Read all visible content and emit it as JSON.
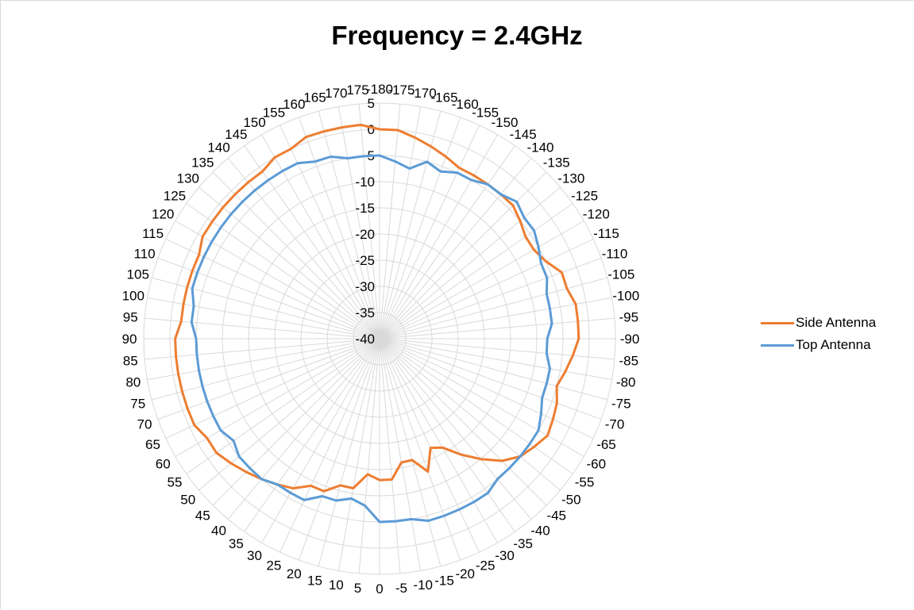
{
  "chart_data": {
    "type": "radar",
    "title": "Frequency = 2.4GHz",
    "angle_labels": [
      "0",
      "-5",
      "-10",
      "-15",
      "-20",
      "-25",
      "-30",
      "-35",
      "-40",
      "-45",
      "-50",
      "-55",
      "-60",
      "-65",
      "-70",
      "-75",
      "-80",
      "-85",
      "-90",
      "-95",
      "-100",
      "-105",
      "-110",
      "-115",
      "-120",
      "-125",
      "-130",
      "-135",
      "-140",
      "-145",
      "-150",
      "-155",
      "-160",
      "-165",
      "-170",
      "-175",
      "-180",
      "175",
      "170",
      "165",
      "160",
      "155",
      "150",
      "145",
      "140",
      "135",
      "130",
      "125",
      "120",
      "115",
      "110",
      "105",
      "100",
      "95",
      "90",
      "85",
      "80",
      "75",
      "70",
      "65",
      "60",
      "55",
      "50",
      "45",
      "40",
      "35",
      "30",
      "25",
      "20",
      "15",
      "10",
      "5"
    ],
    "radial_ticks": [
      -40,
      -35,
      -30,
      -25,
      -20,
      -15,
      -10,
      -5,
      0,
      5
    ],
    "rlim": [
      -40,
      5
    ],
    "grid": true,
    "legend_position": "right",
    "series": [
      {
        "name": "Side Antenna",
        "color": "#ED7D31",
        "values": [
          -13,
          -13,
          -16,
          -16,
          -13,
          -17,
          -16,
          -13,
          -10,
          -7,
          -5,
          -4,
          -3,
          -3.5,
          -4,
          -5,
          -4,
          -3,
          -2,
          -2,
          -2,
          -3,
          -3,
          -5,
          -6,
          -6,
          -5,
          -4,
          -4,
          -4,
          -4,
          -4,
          -3,
          -2,
          -1,
          0,
          0,
          1,
          1,
          1,
          1,
          0,
          0,
          -1,
          -1,
          -1,
          -1,
          -1,
          -1,
          -2,
          -2,
          -2,
          -2,
          -2,
          -1,
          -1,
          -1,
          -1,
          -1,
          -1,
          -2,
          -2,
          -3,
          -4,
          -5,
          -6,
          -7,
          -9,
          -9,
          -11,
          -11,
          -14
        ]
      },
      {
        "name": "Top Antenna",
        "color": "#5B9BD5",
        "values": [
          -5,
          -5,
          -5,
          -4,
          -4,
          -4,
          -4,
          -4,
          -5,
          -5,
          -5,
          -5,
          -5,
          -6,
          -7,
          -7,
          -7,
          -8,
          -8,
          -7,
          -7,
          -7,
          -6,
          -6,
          -5,
          -4,
          -4,
          -3,
          -4,
          -4,
          -5,
          -5,
          -6,
          -5,
          -7,
          -6,
          -5,
          -5,
          -5,
          -4,
          -4,
          -3,
          -3,
          -3,
          -3,
          -3,
          -3,
          -3,
          -3,
          -3,
          -3,
          -3,
          -4,
          -4,
          -5,
          -5,
          -5,
          -5,
          -5,
          -5,
          -5,
          -6,
          -5,
          -5,
          -5,
          -6,
          -6,
          -6,
          -8,
          -8,
          -9,
          -8
        ]
      }
    ]
  }
}
